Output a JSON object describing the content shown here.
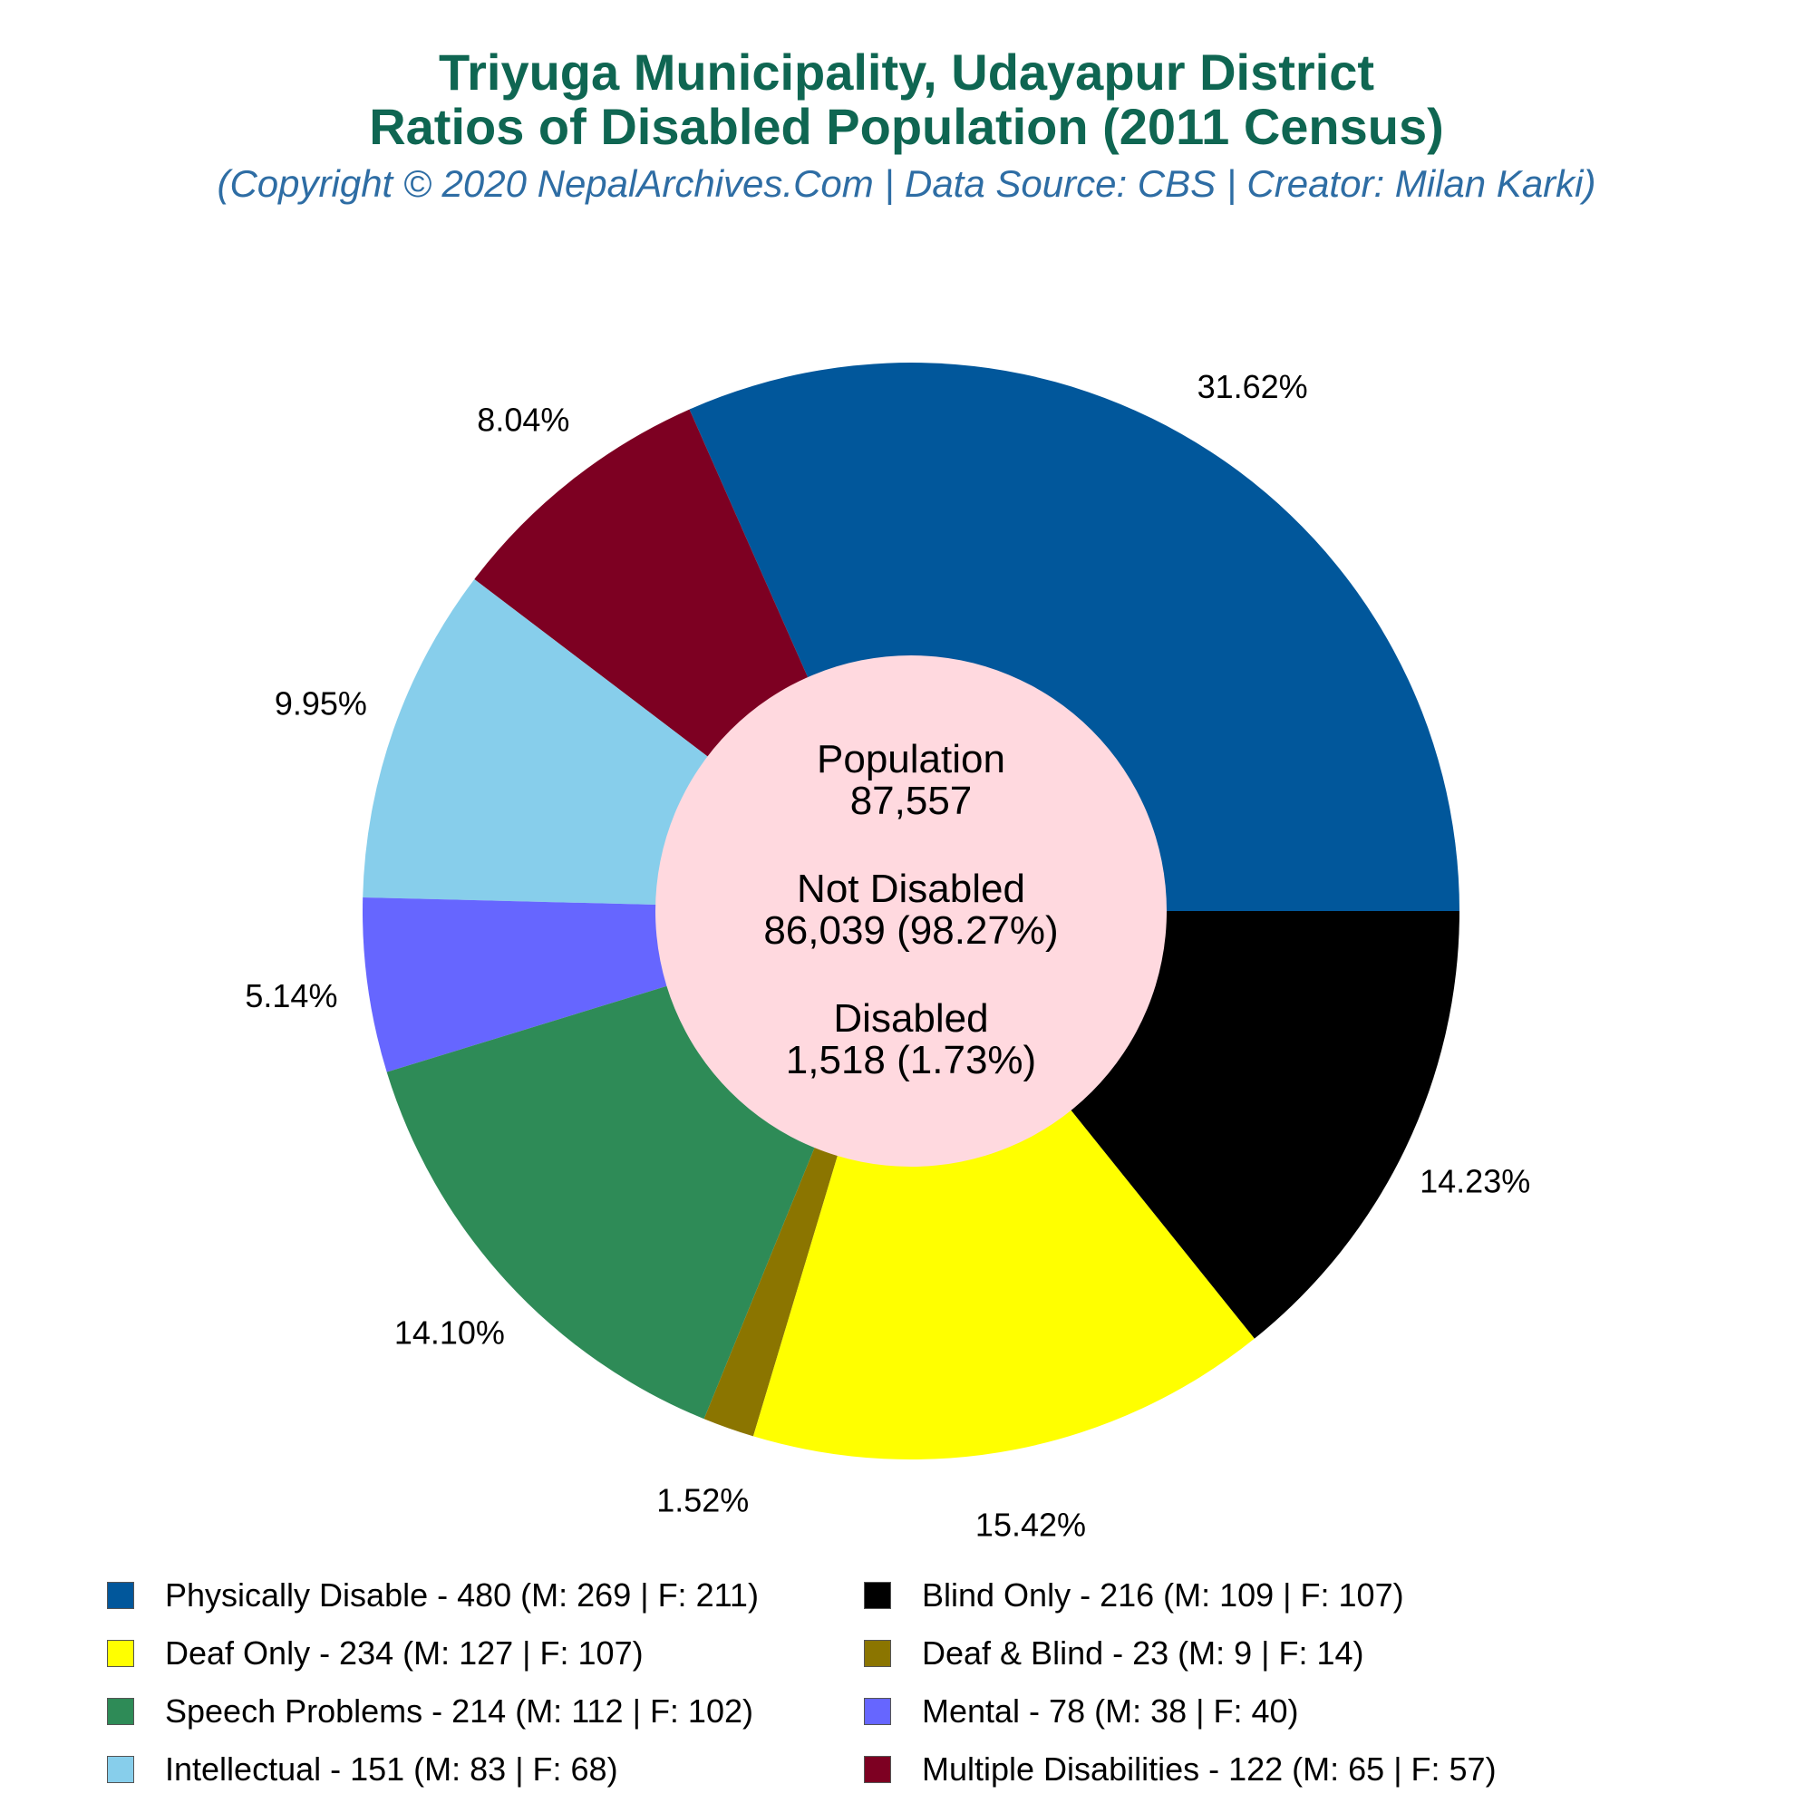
{
  "header": {
    "title_line1": "Triyuga Municipality, Udayapur District",
    "title_line2": "Ratios of Disabled Population (2011 Census)",
    "subtitle": "(Copyright © 2020 NepalArchives.Com | Data Source: CBS | Creator: Milan Karki)"
  },
  "center": {
    "population_label": "Population",
    "population_value": "87,557",
    "not_disabled_label": "Not Disabled",
    "not_disabled_value": "86,039 (98.27%)",
    "disabled_label": "Disabled",
    "disabled_value": "1,518 (1.73%)"
  },
  "chart_data": {
    "type": "pie",
    "title": "Triyuga Municipality, Udayapur District Ratios of Disabled Population (2011 Census)",
    "legend_position": "bottom",
    "slices": [
      {
        "label": "Physically Disable",
        "value": 480,
        "male": 269,
        "female": 211,
        "percent": "31.62%",
        "color": "#01579b",
        "legend": "Physically Disable - 480 (M: 269 | F: 211)"
      },
      {
        "label": "Multiple Disabilities",
        "value": 122,
        "male": 65,
        "female": 57,
        "percent": "8.04%",
        "color": "#7d0022",
        "legend": "Multiple Disabilities - 122 (M: 65 | F: 57)"
      },
      {
        "label": "Intellectual",
        "value": 151,
        "male": 83,
        "female": 68,
        "percent": "9.95%",
        "color": "#87ceeb",
        "legend": "Intellectual - 151 (M: 83 | F: 68)"
      },
      {
        "label": "Mental",
        "value": 78,
        "male": 38,
        "female": 40,
        "percent": "5.14%",
        "color": "#6666ff",
        "legend": "Mental - 78 (M: 38 | F: 40)"
      },
      {
        "label": "Speech Problems",
        "value": 214,
        "male": 112,
        "female": 102,
        "percent": "14.10%",
        "color": "#2e8b57",
        "legend": "Speech Problems - 214 (M: 112 | F: 102)"
      },
      {
        "label": "Deaf & Blind",
        "value": 23,
        "male": 9,
        "female": 14,
        "percent": "1.52%",
        "color": "#8b7500",
        "legend": "Deaf & Blind - 23 (M: 9 | F: 14)"
      },
      {
        "label": "Deaf Only",
        "value": 234,
        "male": 127,
        "female": 107,
        "percent": "15.42%",
        "color": "#ffff00",
        "legend": "Deaf Only - 234 (M: 127 | F: 107)"
      },
      {
        "label": "Blind Only",
        "value": 216,
        "male": 109,
        "female": 107,
        "percent": "14.23%",
        "color": "#000000",
        "legend": "Blind Only - 216 (M: 109 | F: 107)"
      }
    ],
    "legend_order": [
      "Physically Disable",
      "Blind Only",
      "Deaf Only",
      "Deaf & Blind",
      "Speech Problems",
      "Mental",
      "Intellectual",
      "Multiple Disabilities"
    ],
    "center_color": "#ffd9df"
  }
}
